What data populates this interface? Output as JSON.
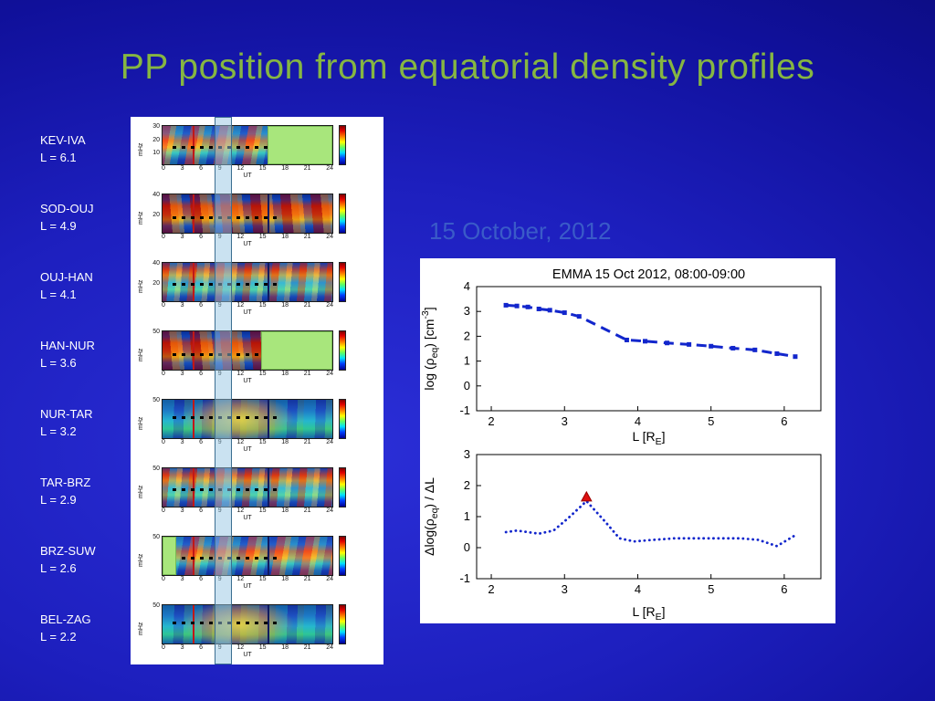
{
  "slide": {
    "title": "PP position from equatorial density profiles",
    "date_label": "15 October, 2012"
  },
  "stations": {
    "ylabel": "mHz",
    "xlabel": "UT",
    "xticks": [
      "0",
      "3",
      "6",
      "9",
      "12",
      "15",
      "18",
      "21",
      "24"
    ],
    "pairs": [
      {
        "name": "KEV-IVA",
        "l_label": "L = 6.1",
        "yticks": [
          "30",
          "20",
          "10"
        ],
        "variant": "v1",
        "gap": "right-38"
      },
      {
        "name": "SOD-OUJ",
        "l_label": "L = 4.9",
        "yticks": [
          "40",
          "20"
        ],
        "variant": "v2",
        "gap": "none"
      },
      {
        "name": "OUJ-HAN",
        "l_label": "L = 4.1",
        "yticks": [
          "40",
          "20"
        ],
        "variant": "v3",
        "gap": "none"
      },
      {
        "name": "HAN-NUR",
        "l_label": "L = 3.6",
        "yticks": [
          "50"
        ],
        "variant": "v2",
        "gap": "right-42"
      },
      {
        "name": "NUR-TAR",
        "l_label": "L = 3.2",
        "yticks": [
          "50"
        ],
        "variant": "v4",
        "gap": "none"
      },
      {
        "name": "TAR-BRZ",
        "l_label": "L = 2.9",
        "yticks": [
          "50"
        ],
        "variant": "v3",
        "gap": "none"
      },
      {
        "name": "BRZ-SUW",
        "l_label": "L = 2.6",
        "yticks": [
          "50"
        ],
        "variant": "v1",
        "gap": "left-8"
      },
      {
        "name": "BEL-ZAG",
        "l_label": "L = 2.2",
        "yticks": [
          "50"
        ],
        "variant": "v4",
        "gap": "none"
      }
    ]
  },
  "chart_data": [
    {
      "type": "line",
      "title": "EMMA 15 Oct 2012, 08:00-09:00",
      "xlabel_parts": [
        {
          "t": "L [R"
        },
        {
          "t": "E",
          "style": "sub"
        },
        {
          "t": "]"
        }
      ],
      "ylabel_parts": [
        {
          "t": "log (ρ"
        },
        {
          "t": "eq",
          "style": "sub"
        },
        {
          "t": ") [cm"
        },
        {
          "t": "-3",
          "style": "sup"
        },
        {
          "t": "]"
        }
      ],
      "xlim": [
        1.8,
        6.5
      ],
      "ylim": [
        -1,
        4
      ],
      "xticks": [
        2,
        3,
        4,
        5,
        6
      ],
      "yticks": [
        -1,
        0,
        1,
        2,
        3,
        4
      ],
      "line_color": "#1226cc",
      "line_style": "dashed",
      "legend": null,
      "x": [
        2.2,
        2.35,
        2.5,
        2.65,
        2.8,
        3.0,
        3.2,
        3.85,
        4.1,
        4.4,
        4.7,
        5.0,
        5.3,
        5.6,
        5.9,
        6.15
      ],
      "y": [
        3.25,
        3.22,
        3.18,
        3.1,
        3.05,
        2.95,
        2.8,
        1.85,
        1.8,
        1.73,
        1.67,
        1.6,
        1.52,
        1.45,
        1.3,
        1.18
      ]
    },
    {
      "type": "line",
      "title": "",
      "xlabel_parts": [
        {
          "t": "L [R"
        },
        {
          "t": "E",
          "style": "sub"
        },
        {
          "t": "]"
        }
      ],
      "ylabel_parts": [
        {
          "t": "Δlog(ρ"
        },
        {
          "t": "eq",
          "style": "sub"
        },
        {
          "t": ") / ΔL"
        }
      ],
      "xlim": [
        1.8,
        6.5
      ],
      "ylim": [
        -1,
        3
      ],
      "xticks": [
        2,
        3,
        4,
        5,
        6
      ],
      "yticks": [
        -1,
        0,
        1,
        2,
        3
      ],
      "line_color": "#1226cc",
      "line_style": "dotted",
      "legend": null,
      "x": [
        2.2,
        2.35,
        2.5,
        2.65,
        2.85,
        3.05,
        3.3,
        3.55,
        3.75,
        3.95,
        4.2,
        4.5,
        4.8,
        5.1,
        5.4,
        5.65,
        5.9,
        6.15
      ],
      "y": [
        0.5,
        0.55,
        0.5,
        0.45,
        0.55,
        0.95,
        1.5,
        0.85,
        0.3,
        0.2,
        0.25,
        0.3,
        0.3,
        0.3,
        0.3,
        0.25,
        0.05,
        0.4
      ],
      "marker": {
        "x": 3.3,
        "y": 1.62,
        "shape": "triangle",
        "color": "#dd1111"
      }
    }
  ]
}
